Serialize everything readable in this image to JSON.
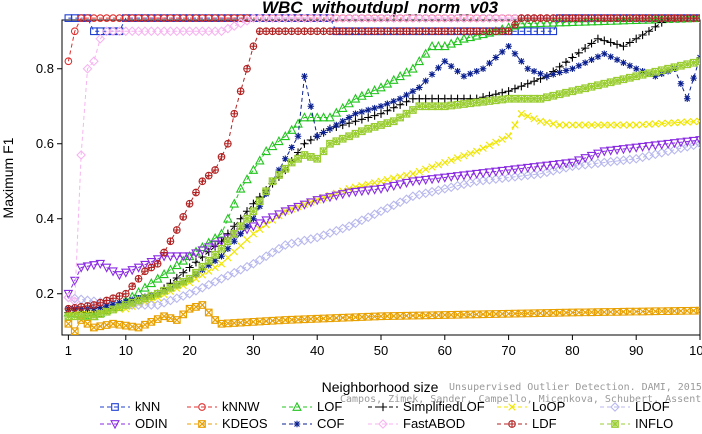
{
  "chart_data": {
    "type": "line",
    "title": "WBC_withoutdupl_norm_v03",
    "xlabel": "Neighborhood size",
    "ylabel": "Maximum F1",
    "xlim": [
      0,
      100
    ],
    "ylim": [
      0.09,
      0.93
    ],
    "x_ticks": [
      1,
      10,
      20,
      30,
      40,
      50,
      60,
      70,
      80,
      90,
      100
    ],
    "y_ticks": [
      0.2,
      0.4,
      0.6,
      0.8
    ],
    "grid": false,
    "legend_position": "bottom",
    "watermark": [
      "Unsupervised Outlier Detection. DAMI, 2015.",
      "Campos, Zimek, Sander, Campello, Micenkova, Schubert, Assent, Houle"
    ],
    "series": [
      {
        "name": "kNN",
        "color": "#1f3fd0",
        "marker": "square",
        "anchors": [
          [
            1,
            0.935
          ],
          [
            4,
            0.935
          ],
          [
            5,
            0.9
          ],
          [
            9,
            0.9
          ],
          [
            10,
            0.935
          ],
          [
            42,
            0.935
          ],
          [
            43,
            0.9
          ],
          [
            77,
            0.9
          ],
          [
            78,
            0.935
          ],
          [
            100,
            0.935
          ]
        ]
      },
      {
        "name": "kNNW",
        "color": "#e0302f",
        "marker": "circle",
        "anchors": [
          [
            1,
            0.82
          ],
          [
            2,
            0.9
          ],
          [
            3,
            0.935
          ],
          [
            100,
            0.935
          ]
        ]
      },
      {
        "name": "LOF",
        "color": "#22c41e",
        "marker": "triangle-up",
        "anchors": [
          [
            1,
            0.15
          ],
          [
            5,
            0.14
          ],
          [
            10,
            0.18
          ],
          [
            15,
            0.24
          ],
          [
            20,
            0.3
          ],
          [
            25,
            0.36
          ],
          [
            28,
            0.48
          ],
          [
            32,
            0.58
          ],
          [
            35,
            0.62
          ],
          [
            38,
            0.67
          ],
          [
            42,
            0.67
          ],
          [
            46,
            0.72
          ],
          [
            50,
            0.75
          ],
          [
            55,
            0.8
          ],
          [
            58,
            0.86
          ],
          [
            60,
            0.86
          ],
          [
            63,
            0.88
          ],
          [
            68,
            0.9
          ],
          [
            72,
            0.92
          ],
          [
            100,
            0.935
          ]
        ]
      },
      {
        "name": "SimplifiedLOF",
        "color": "#000000",
        "marker": "plus",
        "anchors": [
          [
            1,
            0.15
          ],
          [
            5,
            0.15
          ],
          [
            10,
            0.17
          ],
          [
            15,
            0.2
          ],
          [
            20,
            0.27
          ],
          [
            25,
            0.34
          ],
          [
            30,
            0.44
          ],
          [
            35,
            0.53
          ],
          [
            38,
            0.6
          ],
          [
            42,
            0.64
          ],
          [
            46,
            0.66
          ],
          [
            50,
            0.68
          ],
          [
            55,
            0.72
          ],
          [
            60,
            0.72
          ],
          [
            65,
            0.72
          ],
          [
            70,
            0.74
          ],
          [
            73,
            0.76
          ],
          [
            76,
            0.78
          ],
          [
            80,
            0.83
          ],
          [
            84,
            0.88
          ],
          [
            88,
            0.86
          ],
          [
            92,
            0.9
          ],
          [
            95,
            0.935
          ],
          [
            100,
            0.935
          ]
        ]
      },
      {
        "name": "LoOP",
        "color": "#f0e600",
        "marker": "x",
        "anchors": [
          [
            1,
            0.15
          ],
          [
            10,
            0.16
          ],
          [
            15,
            0.19
          ],
          [
            20,
            0.23
          ],
          [
            25,
            0.28
          ],
          [
            30,
            0.36
          ],
          [
            35,
            0.42
          ],
          [
            40,
            0.45
          ],
          [
            45,
            0.48
          ],
          [
            50,
            0.5
          ],
          [
            55,
            0.52
          ],
          [
            60,
            0.55
          ],
          [
            65,
            0.58
          ],
          [
            70,
            0.62
          ],
          [
            72,
            0.68
          ],
          [
            75,
            0.66
          ],
          [
            78,
            0.65
          ],
          [
            82,
            0.65
          ],
          [
            90,
            0.65
          ],
          [
            100,
            0.66
          ]
        ]
      },
      {
        "name": "LDOF",
        "color": "#b8b8ee",
        "marker": "diamond",
        "anchors": [
          [
            1,
            0.19
          ],
          [
            5,
            0.18
          ],
          [
            10,
            0.17
          ],
          [
            15,
            0.17
          ],
          [
            20,
            0.2
          ],
          [
            25,
            0.24
          ],
          [
            30,
            0.28
          ],
          [
            35,
            0.33
          ],
          [
            40,
            0.35
          ],
          [
            45,
            0.38
          ],
          [
            50,
            0.42
          ],
          [
            55,
            0.46
          ],
          [
            60,
            0.48
          ],
          [
            65,
            0.5
          ],
          [
            70,
            0.51
          ],
          [
            75,
            0.52
          ],
          [
            80,
            0.54
          ],
          [
            85,
            0.55
          ],
          [
            90,
            0.56
          ],
          [
            95,
            0.58
          ],
          [
            100,
            0.6
          ]
        ]
      },
      {
        "name": "ODIN",
        "color": "#8a2be2",
        "marker": "triangle-down",
        "anchors": [
          [
            1,
            0.2
          ],
          [
            3,
            0.27
          ],
          [
            6,
            0.28
          ],
          [
            9,
            0.25
          ],
          [
            12,
            0.27
          ],
          [
            16,
            0.3
          ],
          [
            20,
            0.3
          ],
          [
            25,
            0.34
          ],
          [
            30,
            0.38
          ],
          [
            35,
            0.42
          ],
          [
            40,
            0.45
          ],
          [
            45,
            0.47
          ],
          [
            50,
            0.48
          ],
          [
            55,
            0.5
          ],
          [
            60,
            0.51
          ],
          [
            65,
            0.52
          ],
          [
            70,
            0.53
          ],
          [
            75,
            0.54
          ],
          [
            80,
            0.55
          ],
          [
            85,
            0.58
          ],
          [
            90,
            0.59
          ],
          [
            95,
            0.6
          ],
          [
            100,
            0.61
          ]
        ]
      },
      {
        "name": "KDEOS",
        "color": "#e8a000",
        "marker": "square-x",
        "anchors": [
          [
            1,
            0.12
          ],
          [
            2,
            0.1
          ],
          [
            3,
            0.13
          ],
          [
            5,
            0.11
          ],
          [
            8,
            0.12
          ],
          [
            12,
            0.11
          ],
          [
            16,
            0.14
          ],
          [
            18,
            0.13
          ],
          [
            20,
            0.16
          ],
          [
            22,
            0.17
          ],
          [
            24,
            0.13
          ],
          [
            25,
            0.12
          ],
          [
            35,
            0.13
          ],
          [
            50,
            0.14
          ],
          [
            65,
            0.145
          ],
          [
            80,
            0.15
          ],
          [
            100,
            0.155
          ]
        ]
      },
      {
        "name": "COF",
        "color": "#0a1f8f",
        "marker": "star",
        "anchors": [
          [
            1,
            0.16
          ],
          [
            5,
            0.16
          ],
          [
            10,
            0.18
          ],
          [
            15,
            0.2
          ],
          [
            20,
            0.24
          ],
          [
            25,
            0.3
          ],
          [
            30,
            0.4
          ],
          [
            33,
            0.5
          ],
          [
            35,
            0.56
          ],
          [
            37,
            0.62
          ],
          [
            38,
            0.78
          ],
          [
            40,
            0.62
          ],
          [
            43,
            0.65
          ],
          [
            46,
            0.68
          ],
          [
            50,
            0.7
          ],
          [
            53,
            0.72
          ],
          [
            56,
            0.75
          ],
          [
            60,
            0.82
          ],
          [
            63,
            0.78
          ],
          [
            66,
            0.8
          ],
          [
            70,
            0.86
          ],
          [
            73,
            0.8
          ],
          [
            76,
            0.78
          ],
          [
            80,
            0.8
          ],
          [
            85,
            0.84
          ],
          [
            90,
            0.8
          ],
          [
            93,
            0.78
          ],
          [
            96,
            0.8
          ],
          [
            98,
            0.72
          ],
          [
            100,
            0.83
          ]
        ]
      },
      {
        "name": "FastABOD",
        "color": "#f6b5f0",
        "marker": "diamond",
        "anchors": [
          [
            1,
            0.19
          ],
          [
            2,
            0.18
          ],
          [
            3,
            0.57
          ],
          [
            4,
            0.8
          ],
          [
            5,
            0.82
          ],
          [
            6,
            0.88
          ],
          [
            7,
            0.9
          ],
          [
            10,
            0.9
          ],
          [
            13,
            0.9
          ],
          [
            16,
            0.9
          ],
          [
            20,
            0.9
          ],
          [
            25,
            0.9
          ],
          [
            30,
            0.935
          ],
          [
            100,
            0.935
          ]
        ]
      },
      {
        "name": "LDF",
        "color": "#b22222",
        "marker": "circle-plus",
        "anchors": [
          [
            1,
            0.16
          ],
          [
            5,
            0.17
          ],
          [
            10,
            0.2
          ],
          [
            13,
            0.26
          ],
          [
            15,
            0.28
          ],
          [
            18,
            0.37
          ],
          [
            20,
            0.44
          ],
          [
            22,
            0.5
          ],
          [
            24,
            0.53
          ],
          [
            26,
            0.6
          ],
          [
            27,
            0.68
          ],
          [
            29,
            0.8
          ],
          [
            30,
            0.86
          ],
          [
            31,
            0.9
          ],
          [
            45,
            0.9
          ],
          [
            60,
            0.9
          ],
          [
            70,
            0.9
          ],
          [
            72,
            0.935
          ],
          [
            100,
            0.935
          ]
        ]
      },
      {
        "name": "INFLO",
        "color": "#9acd32",
        "marker": "square-star",
        "anchors": [
          [
            1,
            0.14
          ],
          [
            5,
            0.14
          ],
          [
            10,
            0.17
          ],
          [
            15,
            0.2
          ],
          [
            20,
            0.24
          ],
          [
            25,
            0.32
          ],
          [
            30,
            0.42
          ],
          [
            33,
            0.5
          ],
          [
            36,
            0.55
          ],
          [
            38,
            0.57
          ],
          [
            40,
            0.56
          ],
          [
            42,
            0.6
          ],
          [
            45,
            0.62
          ],
          [
            48,
            0.64
          ],
          [
            52,
            0.66
          ],
          [
            56,
            0.7
          ],
          [
            60,
            0.7
          ],
          [
            65,
            0.71
          ],
          [
            70,
            0.72
          ],
          [
            75,
            0.72
          ],
          [
            80,
            0.74
          ],
          [
            85,
            0.76
          ],
          [
            90,
            0.78
          ],
          [
            95,
            0.8
          ],
          [
            100,
            0.82
          ]
        ]
      }
    ]
  }
}
